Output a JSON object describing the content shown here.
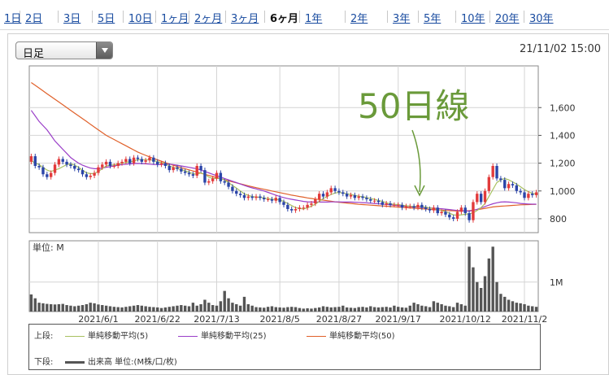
{
  "tabs": [
    {
      "label": "1日"
    },
    {
      "label": "2日"
    },
    {
      "label": "3日"
    },
    {
      "label": "5日"
    },
    {
      "label": "10日"
    },
    {
      "label": "1ヶ月"
    },
    {
      "label": "2ヶ月"
    },
    {
      "label": "3ヶ月"
    },
    {
      "label": "6ヶ月",
      "active": true
    },
    {
      "label": "1年"
    },
    {
      "label": "2年"
    },
    {
      "label": "3年"
    },
    {
      "label": "5年"
    },
    {
      "label": "10年"
    },
    {
      "label": "20年"
    },
    {
      "label": "30年"
    }
  ],
  "period_select": {
    "value": "日足"
  },
  "datetime": "21/11/02 15:00",
  "annotation": {
    "text": "50日線",
    "color": "#6a9a3a"
  },
  "volume_unit": "単位: M",
  "legend": {
    "upper_label": "上段:",
    "lower_label": "下段:",
    "items": [
      {
        "label": "単純移動平均(5)",
        "color": "#a8c060"
      },
      {
        "label": "単純移動平均(25)",
        "color": "#9a3ec8"
      },
      {
        "label": "単純移動平均(50)",
        "color": "#e0602a"
      }
    ],
    "volume_label": "出来高 単位:(M株/口/枚)",
    "volume_color": "#555555"
  },
  "colors": {
    "up": "#e23b3b",
    "down": "#2b45a8",
    "volume": "#555555",
    "grid": "#d4d4d4"
  },
  "chart_data": {
    "type": "candlestick",
    "title": "",
    "xlabel": "",
    "ylabel": "",
    "ylim": [
      700,
      1900
    ],
    "y_ticks": [
      "1,600",
      "1,400",
      "1,200",
      "1,000",
      "800"
    ],
    "y_tick_values": [
      1600,
      1400,
      1200,
      1000,
      800
    ],
    "x_ticks": [
      "2021/6/1",
      "2021/6/22",
      "2021/7/13",
      "2021/8/5",
      "2021/8/27",
      "2021/9/17",
      "2021/10/12",
      "2021/11/2"
    ],
    "x_tick_index": [
      17,
      32,
      47,
      63,
      78,
      93,
      110,
      125
    ],
    "num_days": 129,
    "close": [
      1250,
      1180,
      1170,
      1120,
      1100,
      1130,
      1190,
      1230,
      1210,
      1190,
      1180,
      1160,
      1150,
      1120,
      1100,
      1110,
      1130,
      1170,
      1190,
      1210,
      1180,
      1180,
      1200,
      1210,
      1230,
      1200,
      1240,
      1230,
      1210,
      1220,
      1240,
      1210,
      1190,
      1200,
      1180,
      1150,
      1170,
      1160,
      1140,
      1130,
      1120,
      1110,
      1180,
      1150,
      1060,
      1070,
      1090,
      1130,
      1070,
      1060,
      1030,
      1000,
      980,
      970,
      950,
      960,
      950,
      960,
      950,
      940,
      940,
      930,
      950,
      920,
      900,
      870,
      860,
      870,
      880,
      880,
      900,
      910,
      940,
      980,
      960,
      990,
      1020,
      1000,
      990,
      980,
      960,
      970,
      950,
      960,
      950,
      940,
      930,
      930,
      920,
      900,
      910,
      900,
      900,
      900,
      880,
      890,
      890,
      880,
      900,
      880,
      870,
      860,
      880,
      840,
      850,
      830,
      810,
      800,
      850,
      880,
      840,
      790,
      920,
      980,
      920,
      1000,
      1100,
      1180,
      1090,
      1080,
      1020,
      1050,
      1040,
      1000,
      990,
      950,
      980,
      970,
      990
    ],
    "ma5": [
      1220,
      1200,
      1190,
      1170,
      1150,
      1140,
      1150,
      1160,
      1175,
      1190,
      1195,
      1185,
      1170,
      1150,
      1130,
      1125,
      1125,
      1140,
      1160,
      1180,
      1185,
      1188,
      1192,
      1200,
      1205,
      1210,
      1215,
      1225,
      1225,
      1225,
      1225,
      1220,
      1210,
      1205,
      1195,
      1180,
      1170,
      1160,
      1155,
      1145,
      1135,
      1125,
      1120,
      1130,
      1120,
      1100,
      1090,
      1090,
      1090,
      1080,
      1060,
      1040,
      1020,
      1000,
      980,
      968,
      960,
      955,
      955,
      950,
      945,
      940,
      940,
      935,
      925,
      910,
      895,
      880,
      875,
      870,
      880,
      890,
      905,
      925,
      945,
      960,
      975,
      985,
      990,
      985,
      980,
      975,
      968,
      962,
      958,
      952,
      945,
      940,
      932,
      925,
      915,
      908,
      904,
      902,
      898,
      893,
      890,
      889,
      889,
      887,
      884,
      878,
      874,
      868,
      860,
      850,
      840,
      828,
      825,
      828,
      832,
      835,
      842,
      860,
      880,
      910,
      960,
      1010,
      1060,
      1080,
      1090,
      1080,
      1065,
      1050,
      1030,
      1010,
      995,
      982,
      978
    ],
    "ma25": [
      1580,
      1540,
      1500,
      1470,
      1440,
      1400,
      1360,
      1330,
      1300,
      1270,
      1240,
      1220,
      1200,
      1185,
      1175,
      1165,
      1160,
      1160,
      1165,
      1170,
      1175,
      1180,
      1185,
      1190,
      1192,
      1195,
      1197,
      1198,
      1197,
      1195,
      1193,
      1190,
      1190,
      1190,
      1192,
      1192,
      1190,
      1185,
      1180,
      1175,
      1170,
      1165,
      1160,
      1150,
      1140,
      1130,
      1120,
      1110,
      1100,
      1090,
      1080,
      1070,
      1060,
      1050,
      1040,
      1030,
      1022,
      1015,
      1008,
      1000,
      990,
      980,
      970,
      960,
      952,
      945,
      940,
      935,
      930,
      925,
      922,
      920,
      920,
      920,
      920,
      920,
      921,
      921,
      921,
      920,
      920,
      920,
      919,
      918,
      916,
      914,
      912,
      910,
      908,
      906,
      903,
      900,
      897,
      894,
      891,
      889,
      887,
      885,
      883,
      881,
      880,
      878,
      876,
      874,
      872,
      869,
      866,
      863,
      860,
      858,
      856,
      855,
      860,
      868,
      878,
      888,
      898,
      908,
      915,
      920,
      922,
      920,
      918,
      915,
      910,
      908,
      906,
      905,
      905
    ],
    "ma50": [
      1780,
      1760,
      1740,
      1720,
      1700,
      1680,
      1660,
      1640,
      1620,
      1600,
      1580,
      1560,
      1540,
      1520,
      1500,
      1480,
      1460,
      1440,
      1420,
      1400,
      1385,
      1370,
      1355,
      1340,
      1325,
      1310,
      1295,
      1280,
      1268,
      1256,
      1245,
      1234,
      1224,
      1214,
      1204,
      1194,
      1185,
      1176,
      1168,
      1160,
      1152,
      1144,
      1136,
      1128,
      1120,
      1112,
      1104,
      1096,
      1088,
      1080,
      1072,
      1065,
      1058,
      1051,
      1044,
      1037,
      1030,
      1024,
      1018,
      1012,
      1006,
      1000,
      994,
      988,
      982,
      976,
      970,
      965,
      960,
      955,
      950,
      946,
      942,
      938,
      934,
      930,
      926,
      922,
      919,
      916,
      913,
      910,
      907,
      904,
      902,
      900,
      898,
      896,
      894,
      892,
      890,
      888,
      886,
      884,
      882,
      880,
      878,
      876,
      874,
      872,
      870,
      868,
      866,
      864,
      862,
      860,
      858,
      857,
      856,
      856,
      856,
      858,
      862,
      866,
      870,
      875,
      880,
      885,
      888,
      890,
      892,
      894,
      896,
      898,
      900,
      901,
      902,
      903,
      904
    ],
    "volume": [
      0.58,
      0.45,
      0.3,
      0.28,
      0.26,
      0.25,
      0.24,
      0.25,
      0.26,
      0.22,
      0.2,
      0.18,
      0.2,
      0.22,
      0.25,
      0.3,
      0.28,
      0.24,
      0.22,
      0.2,
      0.18,
      0.16,
      0.15,
      0.14,
      0.16,
      0.18,
      0.2,
      0.22,
      0.2,
      0.18,
      0.16,
      0.15,
      0.14,
      0.12,
      0.14,
      0.16,
      0.18,
      0.2,
      0.22,
      0.2,
      0.18,
      0.3,
      0.2,
      0.25,
      0.4,
      0.3,
      0.22,
      0.2,
      0.35,
      0.7,
      0.45,
      0.3,
      0.25,
      0.2,
      0.5,
      0.25,
      0.2,
      0.15,
      0.14,
      0.13,
      0.16,
      0.18,
      0.15,
      0.14,
      0.13,
      0.15,
      0.16,
      0.15,
      0.12,
      0.1,
      0.11,
      0.1,
      0.12,
      0.14,
      0.18,
      0.16,
      0.14,
      0.15,
      0.16,
      0.2,
      0.14,
      0.13,
      0.12,
      0.15,
      0.16,
      0.14,
      0.18,
      0.15,
      0.14,
      0.15,
      0.16,
      0.14,
      0.2,
      0.16,
      0.14,
      0.13,
      0.2,
      0.3,
      0.25,
      0.2,
      0.18,
      0.15,
      0.35,
      0.3,
      0.25,
      0.2,
      0.18,
      0.15,
      0.3,
      0.25,
      0.2,
      2.2,
      1.5,
      1.0,
      0.8,
      1.2,
      1.8,
      2.2,
      1.0,
      0.6,
      0.5,
      0.4,
      0.35,
      0.3,
      0.28,
      0.25,
      0.2,
      0.18,
      0.16
    ]
  }
}
